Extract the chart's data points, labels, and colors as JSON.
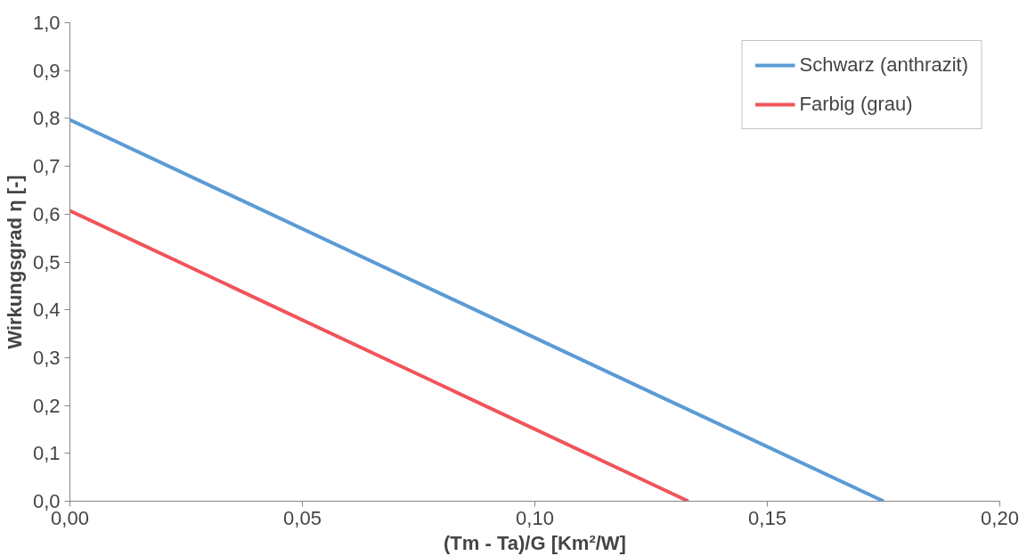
{
  "chart_data": {
    "type": "line",
    "xlabel": "(Tm - Ta)/G [Km²/W]",
    "ylabel": "Wirkungsgrad η [-]",
    "series": [
      {
        "name": "Schwarz (anthrazit)",
        "color": "#5b9bd5",
        "x": [
          0,
          0.175
        ],
        "values": [
          0.797,
          0
        ]
      },
      {
        "name": "Farbig (grau)",
        "color": "#f0545a",
        "x": [
          0,
          0.133
        ],
        "values": [
          0.607,
          0
        ]
      }
    ],
    "xlim": [
      0,
      0.2
    ],
    "ylim": [
      0,
      1
    ],
    "xticks": [
      {
        "value": 0,
        "label": "0,00"
      },
      {
        "value": 0.05,
        "label": "0,05"
      },
      {
        "value": 0.1,
        "label": "0,10"
      },
      {
        "value": 0.15,
        "label": "0,15"
      },
      {
        "value": 0.2,
        "label": "0,20"
      }
    ],
    "yticks": [
      {
        "value": 0,
        "label": "0,0"
      },
      {
        "value": 0.1,
        "label": "0,1"
      },
      {
        "value": 0.2,
        "label": "0,2"
      },
      {
        "value": 0.3,
        "label": "0,3"
      },
      {
        "value": 0.4,
        "label": "0,4"
      },
      {
        "value": 0.5,
        "label": "0,5"
      },
      {
        "value": 0.6,
        "label": "0,6"
      },
      {
        "value": 0.7,
        "label": "0,7"
      },
      {
        "value": 0.8,
        "label": "0,8"
      },
      {
        "value": 0.9,
        "label": "0,9"
      },
      {
        "value": 1,
        "label": "1,0"
      }
    ],
    "grid": false,
    "legend": "top right",
    "marker": "none",
    "line_style": "solid"
  }
}
